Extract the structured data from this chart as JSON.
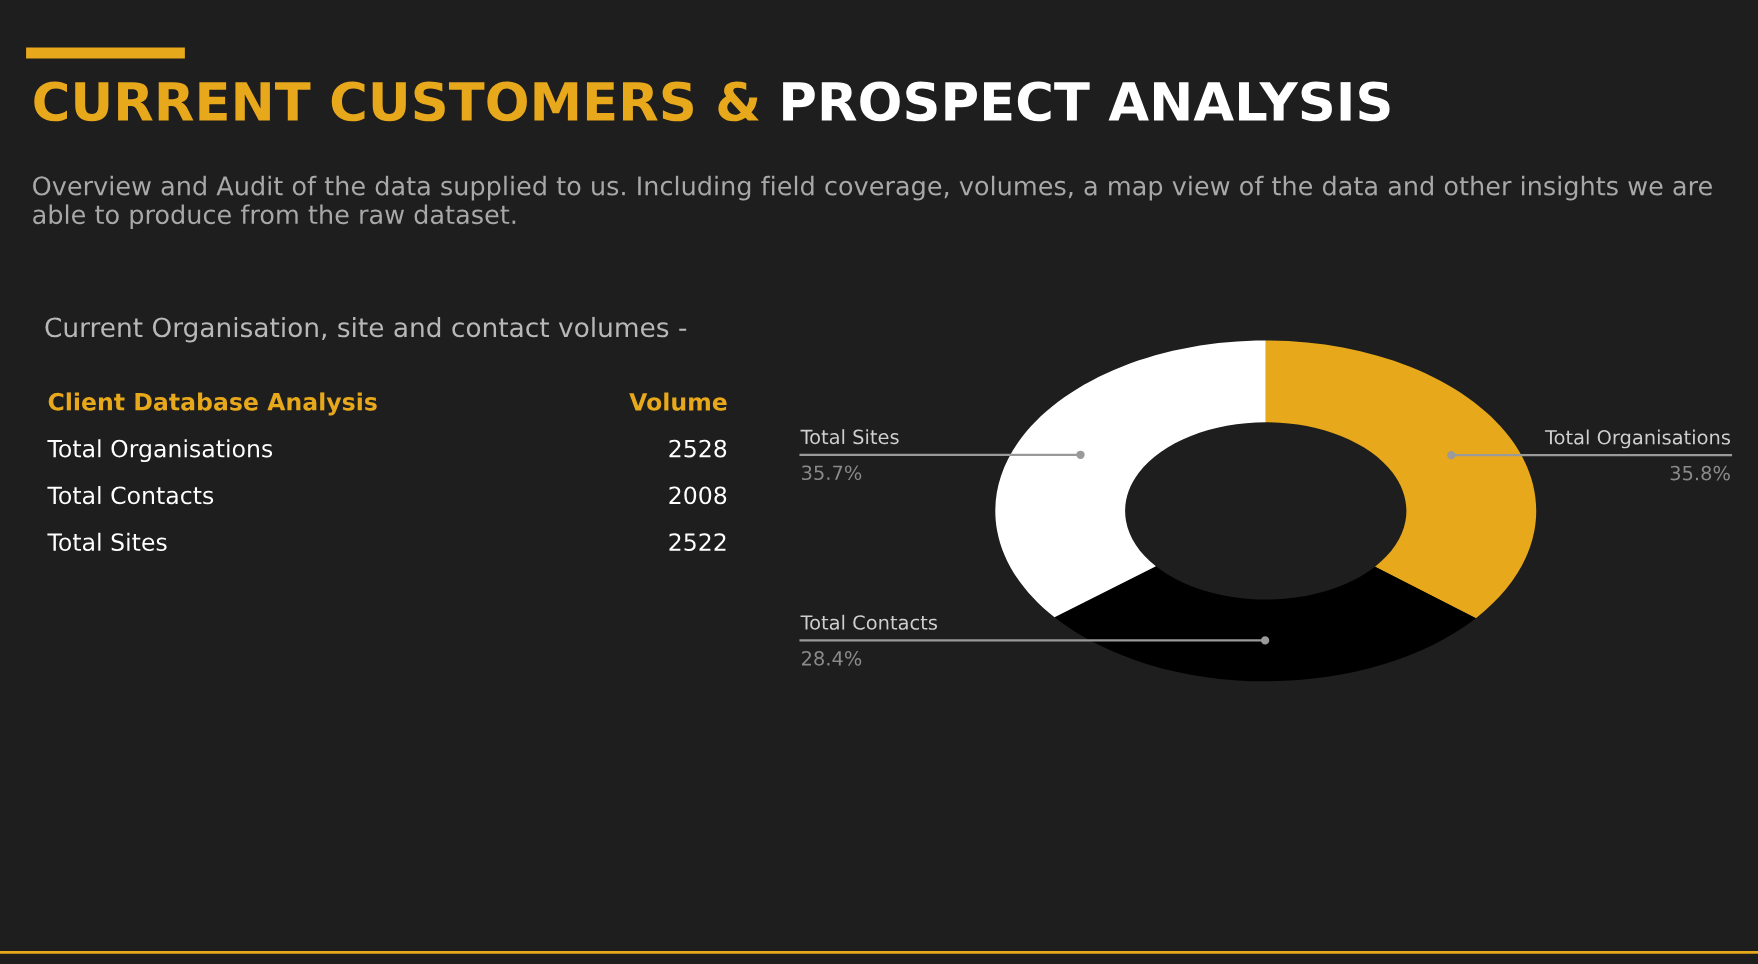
{
  "chart_data": [
    {
      "type": "other",
      "title": "CURRENT CUSTOMERS & PROSPECT ANALYSIS",
      "subtitle": "Overview and Audit of the data supplied to us. Including field coverage, volumes, a map view of the data and other insights we are able to produce from the raw dataset.",
      "annotations": [
        "Current Organisation, site and contact volumes -",
        "Client Database Analysis",
        "Volume",
        "Total Organisations",
        "2528",
        "Total Contacts",
        "2008",
        "Total Sites",
        "2522"
      ]
    },
    {
      "type": "donut",
      "categories": [
        "Total Organisations",
        "Total Contacts",
        "Total Sites"
      ],
      "values": [
        35.8,
        28.4,
        35.7
      ],
      "colors": [
        "#e8a81b",
        "#000000",
        "#ffffff"
      ],
      "value_labels": [
        "35.8%",
        "28.4%",
        "35.7%"
      ]
    }
  ]
}
